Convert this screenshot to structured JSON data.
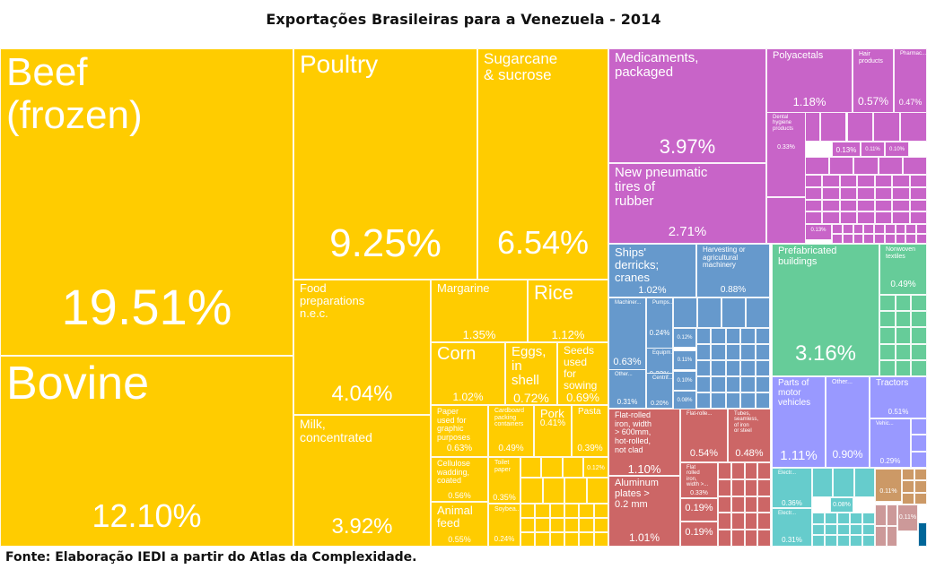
{
  "title": "Exportações Brasileiras para a Venezuela - 2014",
  "source": "Fonte: Elaboração IEDI a partir do Atlas da Complexidade.",
  "colors": {
    "agriculture": "#FFCC00",
    "chemicals": "#C864C8",
    "machinery": "#6699CC",
    "metals": "#CC6666",
    "construction": "#66CC99",
    "vehicles": "#9999FF",
    "electronics": "#66CCCC",
    "stone": "#CC9966",
    "textiles": "#CC9999",
    "other": "#006699"
  },
  "chart_data": {
    "type": "treemap",
    "title": "Exportações Brasileiras para a Venezuela - 2014",
    "unit": "% of total exports",
    "items": [
      {
        "label": "Beef\n(frozen)",
        "value": "19.51%",
        "group": "agriculture"
      },
      {
        "label": "Bovine",
        "value": "12.10%",
        "group": "agriculture"
      },
      {
        "label": "Poultry",
        "value": "9.25%",
        "group": "agriculture"
      },
      {
        "label": "Sugarcane\n& sucrose",
        "value": "6.54%",
        "group": "agriculture"
      },
      {
        "label": "Food\npreparations\nn.e.c.",
        "value": "4.04%",
        "group": "agriculture"
      },
      {
        "label": "Milk,\nconcentrated",
        "value": "3.92%",
        "group": "agriculture"
      },
      {
        "label": "Margarine",
        "value": "1.35%",
        "group": "agriculture"
      },
      {
        "label": "Rice",
        "value": "1.12%",
        "group": "agriculture"
      },
      {
        "label": "Corn",
        "value": "1.02%",
        "group": "agriculture"
      },
      {
        "label": "Eggs,\nin\nshell",
        "value": "0.72%",
        "group": "agriculture"
      },
      {
        "label": "Seeds\nused\nfor\nsowing",
        "value": "0.69%",
        "group": "agriculture"
      },
      {
        "label": "Paper\nused for\ngraphic\npurposes",
        "value": "0.63%",
        "group": "agriculture"
      },
      {
        "label": "Cardboard\npacking\ncontainers",
        "value": "0.49%",
        "group": "agriculture"
      },
      {
        "label": "Pork",
        "value": "0.41%",
        "group": "agriculture"
      },
      {
        "label": "Pasta",
        "value": "0.39%",
        "group": "agriculture"
      },
      {
        "label": "Cellulose\nwadding,\ncoated",
        "value": "0.56%",
        "group": "agriculture"
      },
      {
        "label": "Toilet\npaper",
        "value": "0.35%",
        "group": "agriculture"
      },
      {
        "label": "Animal\nfeed",
        "value": "0.55%",
        "group": "agriculture"
      },
      {
        "label": "Soybea...",
        "value": "0.24%",
        "group": "agriculture"
      },
      {
        "label": "",
        "value": "0.12%",
        "group": "agriculture"
      },
      {
        "label": "Medicaments,\npackaged",
        "value": "3.97%",
        "group": "chemicals"
      },
      {
        "label": "New pneumatic\ntires of\nrubber",
        "value": "2.71%",
        "group": "chemicals"
      },
      {
        "label": "Polyacetals",
        "value": "1.18%",
        "group": "chemicals"
      },
      {
        "label": "Hair\nproducts",
        "value": "0.57%",
        "group": "chemicals"
      },
      {
        "label": "Pharmac...",
        "value": "0.47%",
        "group": "chemicals"
      },
      {
        "label": "Dental\nhygiene\nproducts",
        "value": "0.33%",
        "group": "chemicals"
      },
      {
        "label": "",
        "value": "0.13%",
        "group": "chemicals"
      },
      {
        "label": "",
        "value": "0.11%",
        "group": "chemicals"
      },
      {
        "label": "",
        "value": "0.10%",
        "group": "chemicals"
      },
      {
        "label": "",
        "value": "0.13%",
        "group": "chemicals"
      },
      {
        "label": "Ships'\nderricks;\ncranes",
        "value": "1.02%",
        "group": "machinery"
      },
      {
        "label": "Harvesting or\nagricultural\nmachinery",
        "value": "0.88%",
        "group": "machinery"
      },
      {
        "label": "Machiner...",
        "value": "0.63%",
        "group": "machinery"
      },
      {
        "label": "Pumps...",
        "value": "0.24%",
        "group": "machinery"
      },
      {
        "label": "Equipm...",
        "value": "0.22%",
        "group": "machinery"
      },
      {
        "label": "Other...",
        "value": "0.31%",
        "group": "machinery"
      },
      {
        "label": "Centrif...",
        "value": "0.20%",
        "group": "machinery"
      },
      {
        "label": "",
        "value": "0.12%",
        "group": "machinery"
      },
      {
        "label": "",
        "value": "0.11%",
        "group": "machinery"
      },
      {
        "label": "",
        "value": "0.10%",
        "group": "machinery"
      },
      {
        "label": "",
        "value": "0.08%",
        "group": "machinery"
      },
      {
        "label": "Flat-rolled\niron, width\n> 600mm,\nhot-rolled,\nnot clad",
        "value": "1.10%",
        "group": "metals"
      },
      {
        "label": "Aluminum\nplates >\n0.2 mm",
        "value": "1.01%",
        "group": "metals"
      },
      {
        "label": "Flat-rolle...",
        "value": "0.54%",
        "group": "metals"
      },
      {
        "label": "Tubes,\nseamless,\nof iron\nor steel",
        "value": "0.48%",
        "group": "metals"
      },
      {
        "label": "Flat\nrolled\niron,\nwidth >...",
        "value": "0.33%",
        "group": "metals"
      },
      {
        "label": "",
        "value": "0.19%",
        "group": "metals"
      },
      {
        "label": "",
        "value": "0.19%",
        "group": "metals"
      },
      {
        "label": "Prefabricated\nbuildings",
        "value": "3.16%",
        "group": "construction"
      },
      {
        "label": "Nonwoven\ntextiles",
        "value": "0.49%",
        "group": "construction"
      },
      {
        "label": "Parts of\nmotor\nvehicles",
        "value": "1.11%",
        "group": "vehicles"
      },
      {
        "label": "Other...",
        "value": "0.90%",
        "group": "vehicles"
      },
      {
        "label": "Tractors",
        "value": "0.51%",
        "group": "vehicles"
      },
      {
        "label": "Vehic...",
        "value": "0.29%",
        "group": "vehicles"
      },
      {
        "label": "Electr...",
        "value": "0.36%",
        "group": "electronics"
      },
      {
        "label": "Electr...",
        "value": "0.31%",
        "group": "electronics"
      },
      {
        "label": "",
        "value": "0.08%",
        "group": "electronics"
      },
      {
        "label": "",
        "value": "0.11%",
        "group": "stone"
      },
      {
        "label": "",
        "value": "0.11%",
        "group": "textiles"
      }
    ]
  }
}
